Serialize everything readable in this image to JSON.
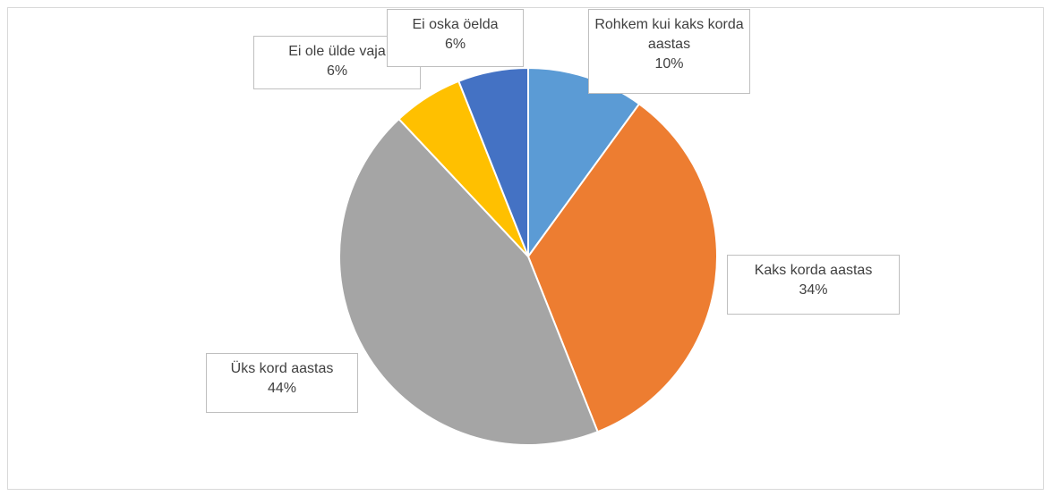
{
  "chart_data": {
    "type": "pie",
    "categories": [
      "Rohkem kui kaks korda aastas",
      "Kaks korda aastas",
      "Üks kord aastas",
      "Ei ole ülde vaja",
      "Ei oska öelda"
    ],
    "values": [
      10,
      34,
      44,
      6,
      6
    ],
    "value_labels": [
      "10%",
      "34%",
      "44%",
      "6%",
      "6%"
    ],
    "colors": [
      "#5b9bd5",
      "#ed7d31",
      "#a5a5a5",
      "#ffc000",
      "#4472c4"
    ]
  }
}
